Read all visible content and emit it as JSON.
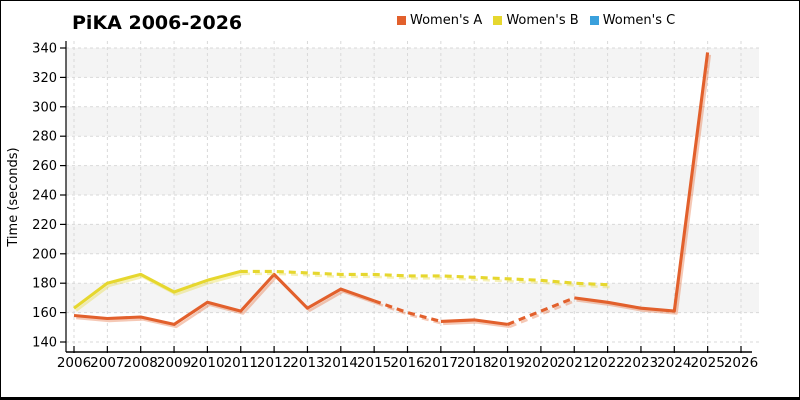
{
  "title": "PiKA 2006-2026",
  "legend": {
    "items": [
      {
        "label": "Women's A",
        "color": "#e2602c"
      },
      {
        "label": "Women's B",
        "color": "#e6d72e"
      },
      {
        "label": "Women's C",
        "color": "#3aa0dc"
      }
    ]
  },
  "chart_data": {
    "type": "line",
    "title": "PiKA 2006-2026",
    "xlabel": "",
    "ylabel": "Time (seconds)",
    "xlim": [
      2006,
      2026
    ],
    "ylim": [
      140,
      340
    ],
    "y_tick_step": 20,
    "x_ticks": [
      2006,
      2007,
      2008,
      2009,
      2010,
      2011,
      2012,
      2013,
      2014,
      2015,
      2016,
      2017,
      2018,
      2019,
      2020,
      2021,
      2022,
      2023,
      2024,
      2025,
      2026
    ],
    "y_ticks": [
      140,
      160,
      180,
      200,
      220,
      240,
      260,
      280,
      300,
      320,
      340
    ],
    "grid": "dashed",
    "band_fill": "#f4f4f4",
    "grid_color": "#d9d9d9",
    "legend_position": "top",
    "series": [
      {
        "name": "Women's A",
        "color": "#e2602c",
        "x": [
          2006,
          2007,
          2008,
          2009,
          2010,
          2011,
          2012,
          2013,
          2014,
          2015,
          2016,
          2017,
          2018,
          2019,
          2020,
          2021,
          2022,
          2023,
          2024,
          2025
        ],
        "values": [
          158,
          156,
          157,
          152,
          167,
          161,
          186,
          163,
          176,
          168,
          160,
          154,
          155,
          152,
          161,
          170,
          167,
          163,
          161,
          337
        ],
        "dashed_segments": [
          [
            2015,
            2017
          ],
          [
            2019,
            2021
          ]
        ]
      },
      {
        "name": "Women's B",
        "color": "#e6d72e",
        "x": [
          2006,
          2007,
          2008,
          2009,
          2010,
          2011,
          2012,
          2013,
          2014,
          2015,
          2016,
          2017,
          2018,
          2019,
          2020,
          2021,
          2022
        ],
        "values": [
          163,
          180,
          186,
          174,
          182,
          188,
          188,
          187,
          186,
          186,
          185,
          185,
          184,
          183,
          182,
          180,
          179
        ],
        "dashed_segments": [
          [
            2011,
            2022
          ]
        ]
      },
      {
        "name": "Women's C",
        "color": "#3aa0dc",
        "x": [],
        "values": [],
        "dashed_segments": []
      }
    ]
  }
}
